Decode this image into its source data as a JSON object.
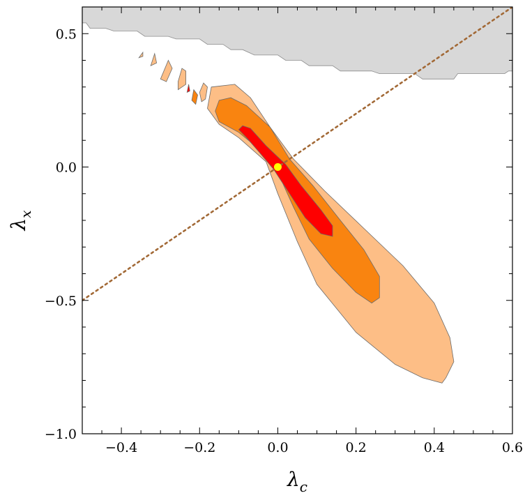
{
  "chart_data": {
    "type": "contour",
    "xlabel": "λ",
    "xlabel_sub": "c",
    "ylabel": "λ",
    "ylabel_sub": "x",
    "xlim": [
      -0.5,
      0.6
    ],
    "ylim": [
      -1.0,
      0.6
    ],
    "xticks": [
      -0.4,
      -0.2,
      0.0,
      0.2,
      0.4,
      0.6
    ],
    "xtick_labels": [
      "−0.4",
      "−0.2",
      "0.0",
      "0.2",
      "0.4",
      "0.6"
    ],
    "yticks": [
      -1.0,
      -0.5,
      0.0,
      0.5
    ],
    "ytick_labels": [
      "−1.0",
      "−0.5",
      "0.0",
      "0.5"
    ],
    "grid": false,
    "colors": {
      "region_3sigma": "#fdbe86",
      "region_2sigma": "#f98410",
      "region_1sigma": "#fe0000",
      "excluded_region": "#d8d8d8",
      "line": "#a26936",
      "best_fit": "#ffff00"
    },
    "line": {
      "style": "dotted",
      "x": [
        -0.5,
        0.6
      ],
      "y": [
        -0.5,
        0.6
      ]
    },
    "best_fit_point": {
      "x": 0.0,
      "y": 0.0
    },
    "contours": [
      {
        "level": "outer",
        "color_key": "region_3sigma",
        "points": [
          [
            -0.07,
            0.26
          ],
          [
            -0.02,
            0.15
          ],
          [
            0.04,
            0.03
          ],
          [
            0.12,
            -0.09
          ],
          [
            0.22,
            -0.23
          ],
          [
            0.32,
            -0.37
          ],
          [
            0.4,
            -0.51
          ],
          [
            0.44,
            -0.64
          ],
          [
            0.45,
            -0.73
          ],
          [
            0.44,
            -0.76
          ],
          [
            0.43,
            -0.79
          ],
          [
            0.42,
            -0.81
          ],
          [
            0.37,
            -0.79
          ],
          [
            0.3,
            -0.74
          ],
          [
            0.2,
            -0.62
          ],
          [
            0.1,
            -0.44
          ],
          [
            0.05,
            -0.28
          ],
          [
            0.0,
            -0.1
          ],
          [
            -0.03,
            0.02
          ],
          [
            -0.1,
            0.11
          ],
          [
            -0.15,
            0.16
          ],
          [
            -0.18,
            0.22
          ],
          [
            -0.17,
            0.3
          ],
          [
            -0.11,
            0.31
          ]
        ]
      },
      {
        "level": "outer-island-1",
        "color_key": "region_3sigma",
        "points": [
          [
            -0.19,
            0.315
          ],
          [
            -0.2,
            0.28
          ],
          [
            -0.195,
            0.245
          ],
          [
            -0.185,
            0.255
          ],
          [
            -0.18,
            0.3
          ]
        ]
      },
      {
        "level": "outer-island-2",
        "color_key": "region_3sigma",
        "points": [
          [
            -0.245,
            0.37
          ],
          [
            -0.255,
            0.32
          ],
          [
            -0.255,
            0.29
          ],
          [
            -0.235,
            0.31
          ],
          [
            -0.235,
            0.36
          ]
        ]
      },
      {
        "level": "outer-island-3",
        "color_key": "region_3sigma",
        "points": [
          [
            -0.28,
            0.4
          ],
          [
            -0.3,
            0.33
          ],
          [
            -0.285,
            0.32
          ],
          [
            -0.27,
            0.37
          ]
        ]
      },
      {
        "level": "outer-island-4",
        "color_key": "region_3sigma",
        "points": [
          [
            -0.315,
            0.425
          ],
          [
            -0.325,
            0.38
          ],
          [
            -0.31,
            0.39
          ]
        ]
      },
      {
        "level": "outer-island-5",
        "color_key": "region_3sigma",
        "points": [
          [
            -0.345,
            0.43
          ],
          [
            -0.355,
            0.41
          ],
          [
            -0.345,
            0.415
          ]
        ]
      },
      {
        "level": "middle",
        "color_key": "region_2sigma",
        "points": [
          [
            -0.12,
            0.26
          ],
          [
            -0.08,
            0.23
          ],
          [
            -0.02,
            0.15
          ],
          [
            0.03,
            0.03
          ],
          [
            0.09,
            -0.07
          ],
          [
            0.16,
            -0.2
          ],
          [
            0.22,
            -0.31
          ],
          [
            0.26,
            -0.41
          ],
          [
            0.26,
            -0.49
          ],
          [
            0.24,
            -0.51
          ],
          [
            0.2,
            -0.47
          ],
          [
            0.14,
            -0.38
          ],
          [
            0.08,
            -0.27
          ],
          [
            0.04,
            -0.15
          ],
          [
            0.0,
            -0.02
          ],
          [
            -0.05,
            0.07
          ],
          [
            -0.1,
            0.13
          ],
          [
            -0.15,
            0.17
          ],
          [
            -0.16,
            0.21
          ],
          [
            -0.15,
            0.25
          ]
        ]
      },
      {
        "level": "middle-island",
        "color_key": "region_2sigma",
        "points": [
          [
            -0.215,
            0.29
          ],
          [
            -0.22,
            0.25
          ],
          [
            -0.21,
            0.235
          ],
          [
            -0.205,
            0.27
          ]
        ]
      },
      {
        "level": "inner",
        "color_key": "region_1sigma",
        "points": [
          [
            -0.09,
            0.155
          ],
          [
            -0.07,
            0.145
          ],
          [
            -0.03,
            0.08
          ],
          [
            0.02,
            0.01
          ],
          [
            0.06,
            -0.07
          ],
          [
            0.11,
            -0.16
          ],
          [
            0.14,
            -0.22
          ],
          [
            0.14,
            -0.26
          ],
          [
            0.11,
            -0.25
          ],
          [
            0.07,
            -0.19
          ],
          [
            0.03,
            -0.1
          ],
          [
            -0.01,
            -0.01
          ],
          [
            -0.05,
            0.06
          ],
          [
            -0.08,
            0.11
          ],
          [
            -0.1,
            0.14
          ]
        ]
      },
      {
        "level": "inner-island",
        "color_key": "region_1sigma",
        "points": [
          [
            -0.228,
            0.31
          ],
          [
            -0.232,
            0.28
          ],
          [
            -0.225,
            0.285
          ]
        ]
      }
    ],
    "excluded_region": {
      "color_key": "excluded_region",
      "points": [
        [
          -0.5,
          0.6
        ],
        [
          0.6,
          0.6
        ],
        [
          0.6,
          0.36
        ],
        [
          0.59,
          0.36
        ],
        [
          0.58,
          0.35
        ],
        [
          0.46,
          0.35
        ],
        [
          0.45,
          0.33
        ],
        [
          0.37,
          0.33
        ],
        [
          0.35,
          0.35
        ],
        [
          0.26,
          0.35
        ],
        [
          0.24,
          0.36
        ],
        [
          0.16,
          0.36
        ],
        [
          0.14,
          0.38
        ],
        [
          0.08,
          0.38
        ],
        [
          0.06,
          0.4
        ],
        [
          0.02,
          0.4
        ],
        [
          0.0,
          0.42
        ],
        [
          -0.06,
          0.42
        ],
        [
          -0.09,
          0.44
        ],
        [
          -0.12,
          0.44
        ],
        [
          -0.14,
          0.46
        ],
        [
          -0.18,
          0.46
        ],
        [
          -0.2,
          0.48
        ],
        [
          -0.26,
          0.48
        ],
        [
          -0.28,
          0.49
        ],
        [
          -0.34,
          0.49
        ],
        [
          -0.36,
          0.51
        ],
        [
          -0.42,
          0.51
        ],
        [
          -0.44,
          0.52
        ],
        [
          -0.48,
          0.52
        ],
        [
          -0.49,
          0.54
        ],
        [
          -0.5,
          0.54
        ]
      ]
    }
  }
}
